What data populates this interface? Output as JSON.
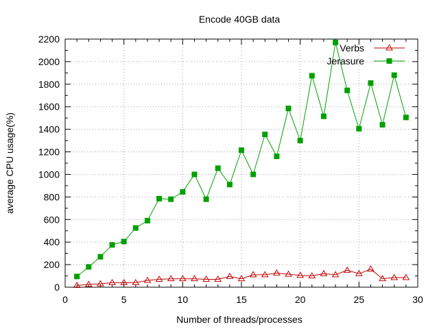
{
  "chart_data": {
    "type": "line",
    "title": "Encode 40GB data",
    "xlabel": "Number of threads/processes",
    "ylabel": "average CPU usage(%)",
    "xlim": [
      0,
      30
    ],
    "ylim": [
      0,
      2200
    ],
    "xticks": [
      0,
      5,
      10,
      15,
      20,
      25,
      30
    ],
    "yticks": [
      0,
      200,
      400,
      600,
      800,
      1000,
      1200,
      1400,
      1600,
      1800,
      2000,
      2200
    ],
    "grid": true,
    "legend_position": "top-right",
    "x": [
      1,
      2,
      3,
      4,
      5,
      6,
      7,
      8,
      9,
      10,
      11,
      12,
      13,
      14,
      15,
      16,
      17,
      18,
      19,
      20,
      21,
      22,
      23,
      24,
      25,
      26,
      27,
      28,
      29
    ],
    "series": [
      {
        "name": "Verbs",
        "color": "#c00000",
        "marker": "open-triangle",
        "values": [
          15,
          25,
          30,
          40,
          40,
          40,
          60,
          70,
          75,
          75,
          75,
          70,
          70,
          95,
          75,
          110,
          110,
          125,
          115,
          105,
          100,
          120,
          110,
          150,
          120,
          160,
          75,
          85,
          85
        ]
      },
      {
        "name": "Jerasure",
        "color": "#00a000",
        "marker": "filled-square",
        "values": [
          95,
          180,
          270,
          375,
          405,
          525,
          590,
          785,
          780,
          845,
          1000,
          780,
          1055,
          910,
          1215,
          1000,
          1355,
          1160,
          1585,
          1300,
          1875,
          1515,
          2170,
          1745,
          1405,
          1810,
          1440,
          1880,
          1505
        ]
      }
    ]
  }
}
